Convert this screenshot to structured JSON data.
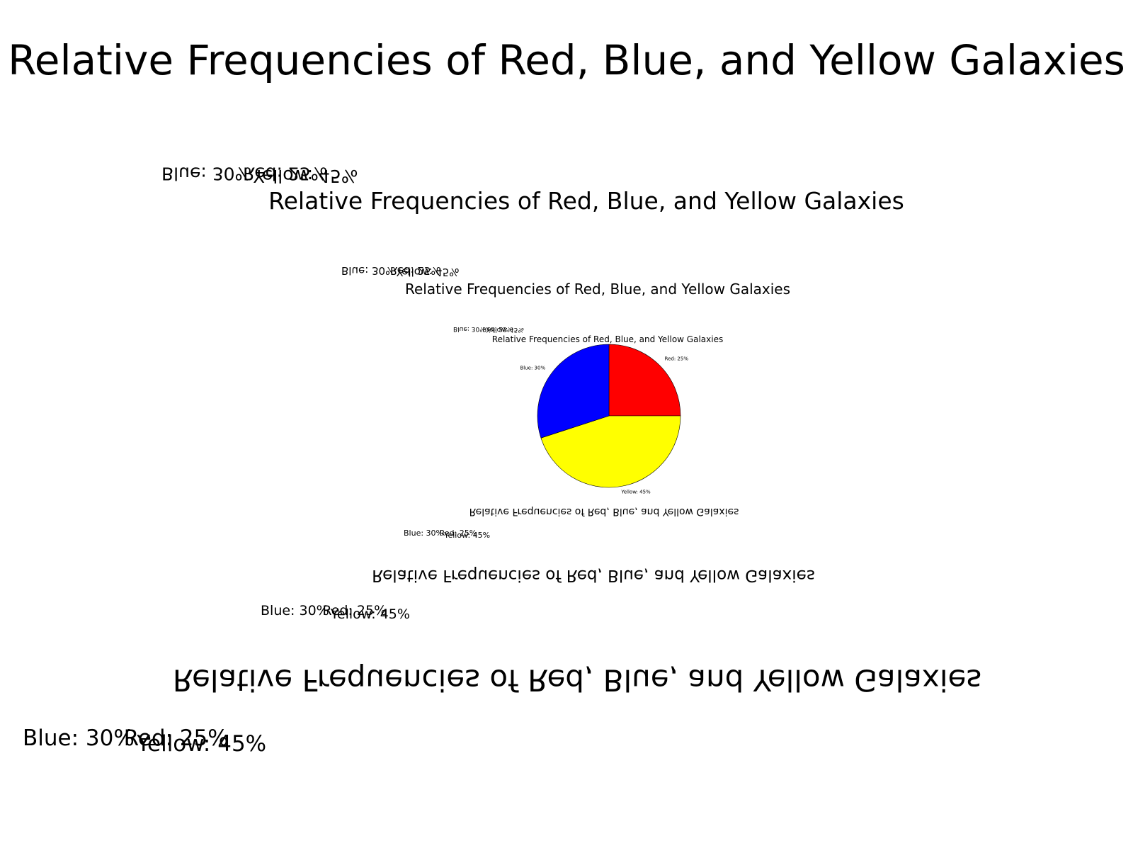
{
  "chart_data": {
    "type": "pie",
    "title": "Relative Frequencies of Red, Blue, and Yellow Galaxies",
    "categories": [
      "Red",
      "Blue",
      "Yellow"
    ],
    "values": [
      25,
      30,
      45
    ],
    "colors": [
      "#ff0000",
      "#0000ff",
      "#ffff00"
    ],
    "labels": [
      "Red: 25%",
      "Blue: 30%",
      "Yellow: 45%"
    ],
    "start_angle": 90,
    "direction": "clockwise",
    "edge_color": "#000000",
    "legend": "none",
    "layout": "recursive nested copies of the figure, alternately upright and flipped"
  }
}
